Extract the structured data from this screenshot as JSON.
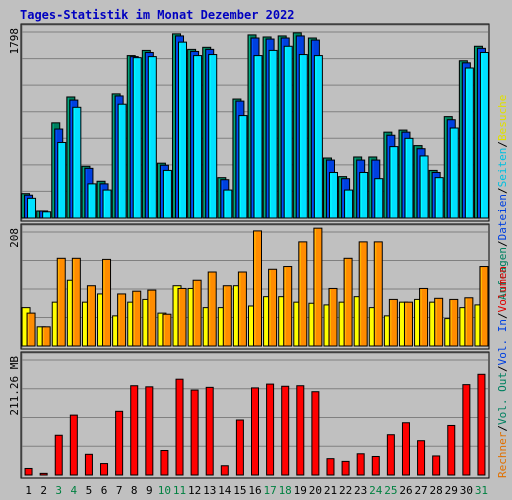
{
  "chart_data": {
    "type": "bar",
    "title": "Tages-Statistik im Monat Dezember 2022",
    "title_color": "#0000c0",
    "background": "#c0c0c0",
    "days": [
      "1",
      "2",
      "3",
      "4",
      "5",
      "6",
      "7",
      "8",
      "9",
      "10",
      "11",
      "12",
      "13",
      "14",
      "15",
      "16",
      "17",
      "18",
      "19",
      "20",
      "21",
      "22",
      "23",
      "24",
      "25",
      "26",
      "27",
      "28",
      "29",
      "30",
      "31"
    ],
    "weekend_days": [
      "3",
      "4",
      "10",
      "11",
      "17",
      "18",
      "24",
      "25",
      "31"
    ],
    "weekend_color": "#008040",
    "weekday_color": "#000000",
    "panels": [
      {
        "id": "hits",
        "ymax_label": "1798",
        "ymax": 1798,
        "series": [
          {
            "name": "Anfragen",
            "color": "#008060",
            "values": [
              235,
              68,
              920,
              1170,
              500,
              355,
              1200,
              1570,
              1620,
              530,
              1780,
              1630,
              1650,
              390,
              1150,
              1770,
              1750,
              1760,
              1790,
              1740,
              580,
              400,
              590,
              590,
              830,
              850,
              700,
              460,
              980,
              1520,
              1660
            ]
          },
          {
            "name": "Dateien",
            "color": "#0040e0",
            "values": [
              220,
              68,
              860,
              1140,
              480,
              330,
              1180,
              1560,
              1600,
              510,
              1760,
              1610,
              1630,
              370,
              1130,
              1740,
              1730,
              1740,
              1760,
              1720,
              560,
              380,
              560,
              560,
              800,
              830,
              670,
              440,
              950,
              1500,
              1640
            ]
          },
          {
            "name": "Seiten",
            "color": "#00e0ff",
            "values": [
              190,
              60,
              730,
              1070,
              330,
              270,
              1100,
              1550,
              1560,
              460,
              1700,
              1570,
              1580,
              270,
              990,
              1570,
              1620,
              1660,
              1580,
              1570,
              440,
              270,
              440,
              380,
              690,
              770,
              600,
              390,
              870,
              1450,
              1600
            ]
          }
        ],
        "right_labels": [
          {
            "text": "Anfragen",
            "color": "#008060"
          },
          {
            "text": "/",
            "color": "#000000"
          },
          {
            "text": "Dateien",
            "color": "#0040e0"
          },
          {
            "text": "/",
            "color": "#000000"
          },
          {
            "text": "Seiten",
            "color": "#00c0e0"
          },
          {
            "text": "/",
            "color": "#000000"
          },
          {
            "text": "Besuche",
            "color": "#e0e000"
          }
        ]
      },
      {
        "id": "visits",
        "ymax_label": "208",
        "ymax": 208,
        "series": [
          {
            "name": "Besuche",
            "color": "#ffff00",
            "values": [
              70,
              35,
              80,
              120,
              80,
              95,
              55,
              80,
              85,
              60,
              110,
              105,
              70,
              70,
              110,
              73,
              90,
              90,
              80,
              78,
              75,
              80,
              90,
              70,
              55,
              80,
              85,
              80,
              50,
              70,
              75
            ]
          },
          {
            "name": "Rechner",
            "color": "#ff8c00",
            "values": [
              60,
              35,
              160,
              160,
              110,
              158,
              95,
              100,
              102,
              58,
              105,
              120,
              135,
              110,
              135,
              210,
              140,
              145,
              190,
              215,
              105,
              160,
              190,
              190,
              85,
              80,
              105,
              87,
              85,
              88,
              145
            ]
          }
        ],
        "right_labels": [
          {
            "text": "Rechner",
            "color": "#e07000"
          },
          {
            "text": "/",
            "color": "#000000"
          },
          {
            "text": "Vol. Out",
            "color": "#008060"
          },
          {
            "text": "/",
            "color": "#000000"
          },
          {
            "text": "Vol. In",
            "color": "#0040e0"
          },
          {
            "text": "/",
            "color": "#000000"
          },
          {
            "text": "Volumen",
            "color": "#e00000"
          }
        ]
      },
      {
        "id": "volume",
        "ymax_label": "211.26 MB",
        "ymax": 211.26,
        "series": [
          {
            "name": "Volumen",
            "color": "#ff0000",
            "values": [
              12,
              3,
              73,
              110,
              38,
              21,
              117,
              164,
              162,
              45,
              176,
              156,
              161,
              17,
              101,
              160,
              167,
              163,
              164,
              153,
              30,
              25,
              39,
              34,
              74,
              96,
              63,
              35,
              91,
              166,
              185
            ]
          }
        ]
      }
    ]
  }
}
